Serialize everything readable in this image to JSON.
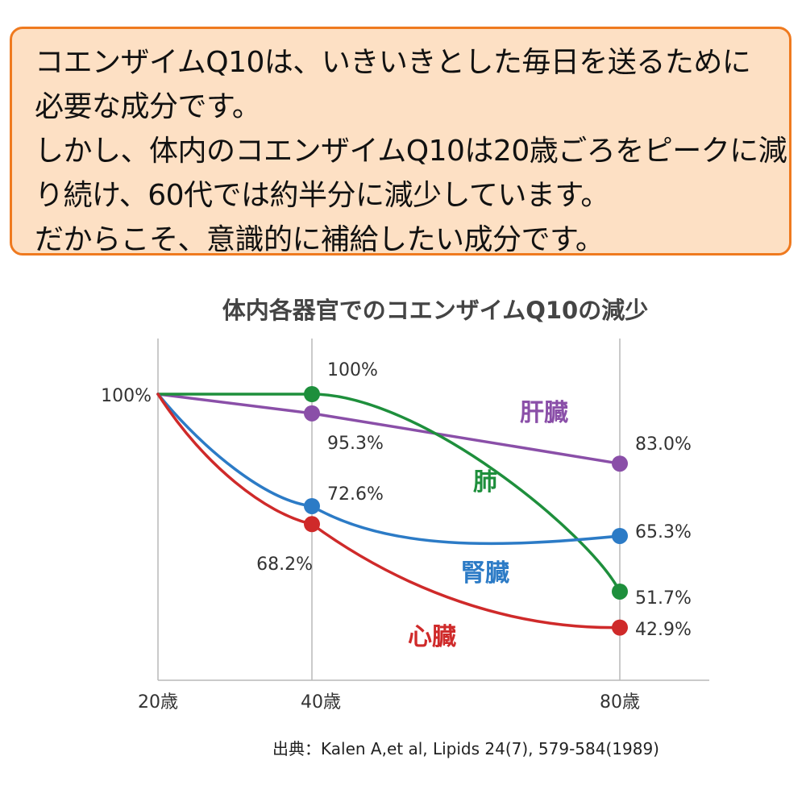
{
  "callout": {
    "lines": [
      "コエンザイムQ10は、いきいきとした毎日を送るために",
      "必要な成分です。",
      "しかし、体内のコエンザイムQ10は20歳ごろをピークに減",
      "り続け、60代では約半分に減少しています。",
      "だからこそ、意識的に補給したい成分です。"
    ]
  },
  "chart_data": {
    "type": "line",
    "title": "体内各器官でのコエンザイムQ10の減少",
    "categories": [
      "20歳",
      "40歳",
      "80歳"
    ],
    "x": [
      20,
      40,
      80
    ],
    "xlim": [
      20,
      80
    ],
    "ylim": [
      30,
      100
    ],
    "y_tick_label": "100%",
    "grid": true,
    "series": [
      {
        "name": "肝臓",
        "color": "#8a4fa8",
        "values": [
          100,
          95.3,
          83.0
        ],
        "labels": [
          "",
          "95.3%",
          "83.0%"
        ]
      },
      {
        "name": "肺",
        "color": "#1e8f3c",
        "values": [
          100,
          100,
          51.7
        ],
        "labels": [
          "",
          "100%",
          "51.7%"
        ]
      },
      {
        "name": "腎臓",
        "color": "#2c7bc6",
        "values": [
          100,
          72.6,
          65.3
        ],
        "labels": [
          "",
          "72.6%",
          "65.3%"
        ]
      },
      {
        "name": "心臓",
        "color": "#cf2a2a",
        "values": [
          100,
          68.2,
          42.9
        ],
        "labels": [
          "",
          "68.2%",
          "42.9%"
        ]
      }
    ],
    "source": "出典：Kalen A,et al, Lipids 24(7), 579-584(1989)"
  }
}
